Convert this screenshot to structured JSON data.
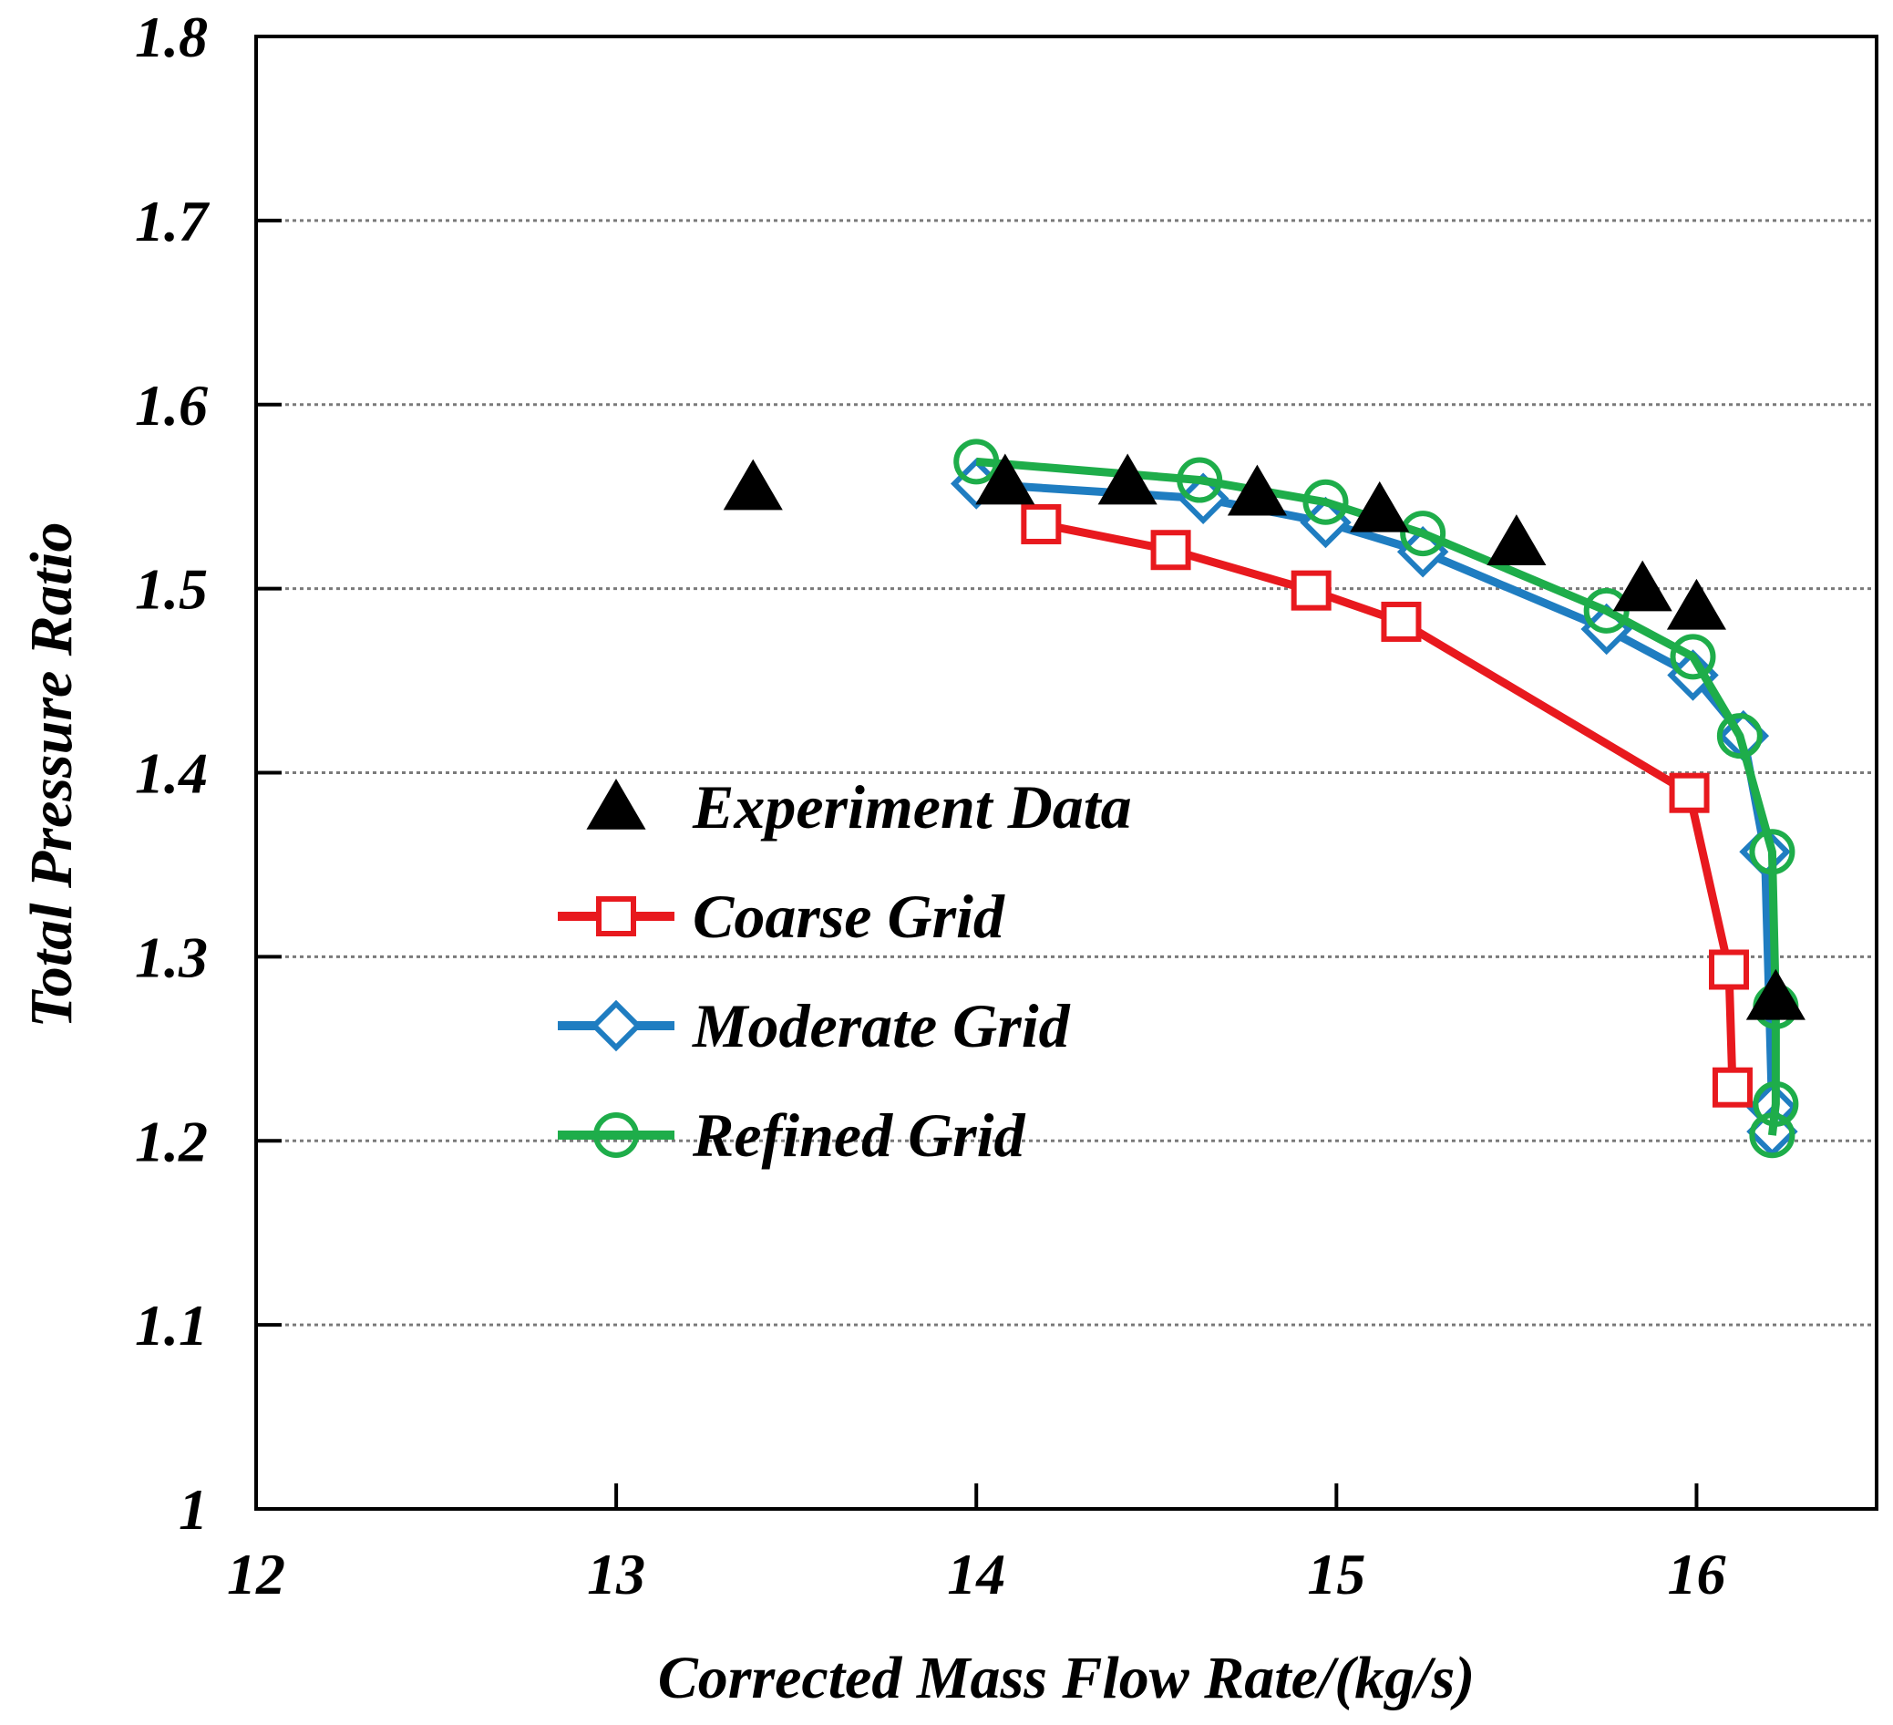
{
  "chart_data": {
    "type": "line",
    "title": "",
    "xlabel": "Corrected Mass Flow Rate/(kg/s)",
    "ylabel": "Total Pressure Ratio",
    "xlim": [
      12,
      16.5
    ],
    "ylim": [
      1,
      1.8
    ],
    "xticks": [
      12,
      13,
      14,
      15,
      16
    ],
    "xtick_labels": [
      "12",
      "13",
      "14",
      "15",
      "16"
    ],
    "yticks": [
      1,
      1.1,
      1.2,
      1.3,
      1.4,
      1.5,
      1.6,
      1.7,
      1.8
    ],
    "ytick_labels": [
      "1",
      "1.1",
      "1.2",
      "1.3",
      "1.4",
      "1.5",
      "1.6",
      "1.7",
      "1.8"
    ],
    "grid": "horizontal dotted",
    "legend_position": "center-left",
    "series": [
      {
        "name": "Experiment Data",
        "marker": "triangle",
        "line": false,
        "color": "#000000",
        "x": [
          13.38,
          14.08,
          14.42,
          14.78,
          15.12,
          15.5,
          15.85,
          16.0,
          16.22
        ],
        "y": [
          1.555,
          1.558,
          1.558,
          1.552,
          1.543,
          1.525,
          1.5,
          1.49,
          1.278
        ]
      },
      {
        "name": "Coarse Grid",
        "marker": "square",
        "line": true,
        "color": "#e8191e",
        "x": [
          14.18,
          14.54,
          14.93,
          15.18,
          15.98,
          16.09,
          16.1
        ],
        "y": [
          1.535,
          1.521,
          1.499,
          1.482,
          1.389,
          1.293,
          1.229
        ]
      },
      {
        "name": "Moderate Grid",
        "marker": "diamond",
        "line": true,
        "color": "#1f7dc1",
        "x": [
          14.0,
          14.63,
          14.97,
          15.24,
          15.75,
          15.99,
          16.13,
          16.19,
          16.21,
          16.21
        ],
        "y": [
          1.557,
          1.549,
          1.536,
          1.52,
          1.478,
          1.453,
          1.42,
          1.357,
          1.218,
          1.205
        ]
      },
      {
        "name": "Refined Grid",
        "marker": "circle",
        "line": true,
        "color": "#1ead4a",
        "x": [
          14.0,
          14.62,
          14.97,
          15.24,
          15.75,
          15.99,
          16.12,
          16.21,
          16.22,
          16.22,
          16.21
        ],
        "y": [
          1.569,
          1.559,
          1.547,
          1.53,
          1.488,
          1.463,
          1.42,
          1.357,
          1.273,
          1.22,
          1.203
        ]
      }
    ]
  }
}
